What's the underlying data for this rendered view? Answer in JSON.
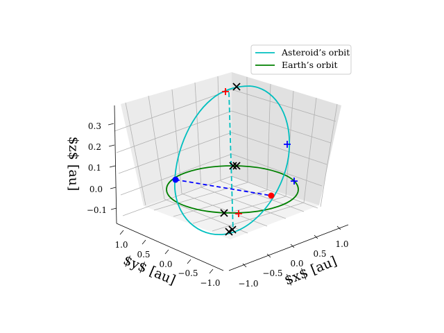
{
  "chart_data": {
    "type": "line",
    "projection": "3d",
    "axes": {
      "x": {
        "label": "$x$ [au]",
        "ticks": [
          "−1.0",
          "−0.5",
          "0.0",
          "0.5",
          "1.0"
        ]
      },
      "y": {
        "label": "$y$ [au]",
        "ticks": [
          "1.0",
          "0.5",
          "0.0",
          "−0.5",
          "−1.0"
        ]
      },
      "z": {
        "label": "$z$ [au]",
        "ticks": [
          "−0.1",
          "0.0",
          "0.1",
          "0.2",
          "0.3"
        ]
      }
    },
    "grid": true,
    "legend": {
      "placement": "upper-right",
      "entries": [
        {
          "name": "Asteroid’s orbit",
          "color": "#00bfbf"
        },
        {
          "name": "Earth’s orbit",
          "color": "#008000"
        }
      ]
    },
    "series": [
      {
        "name": "Asteroid’s orbit",
        "kind": "ellipse (inclined orbit)",
        "color": "#00bfbf"
      },
      {
        "name": "Earth’s orbit",
        "kind": "circle, radius 1 au, z = 0",
        "color": "#008000"
      }
    ],
    "annotations": [
      {
        "kind": "dashed line (cyan)",
        "meaning": "line of apsides"
      },
      {
        "kind": "dashed line (blue)",
        "meaning": "line of nodes"
      },
      {
        "kind": "blue dot",
        "meaning": "node"
      },
      {
        "kind": "red dot",
        "meaning": "node"
      },
      {
        "kind": "red + markers",
        "count": 2
      },
      {
        "kind": "blue + markers",
        "count": 2
      },
      {
        "kind": "black × markers",
        "count": 6
      }
    ],
    "colors": {
      "asteroid": "#00bfbf",
      "earth": "#008000",
      "nodes_line": "#0000ff",
      "red": "#ff0000",
      "blue": "#0000ff",
      "black": "#000000"
    }
  }
}
